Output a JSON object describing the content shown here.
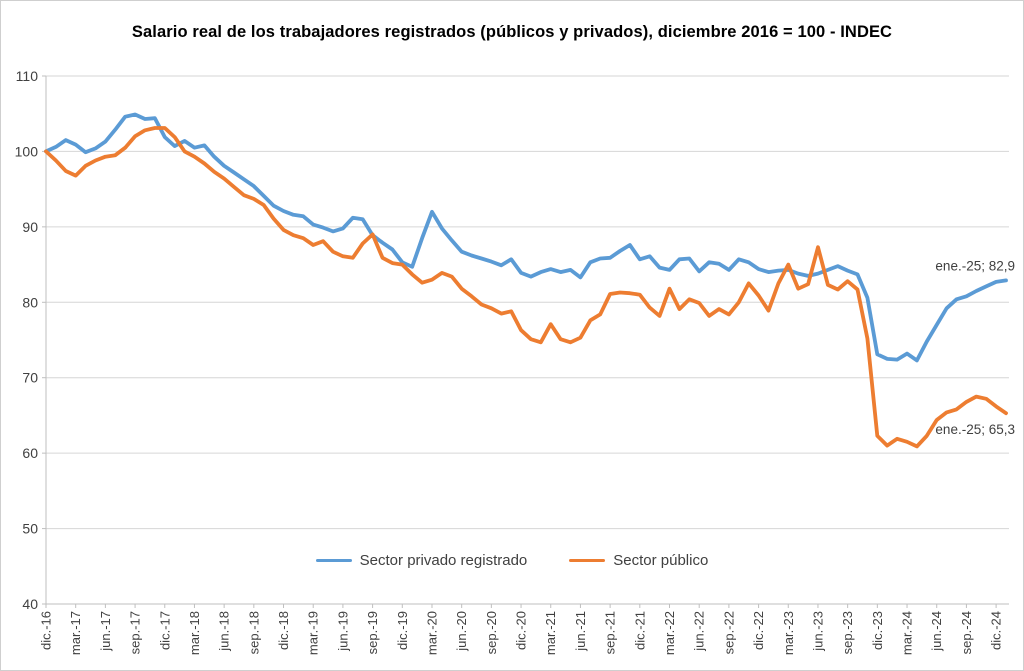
{
  "chart": {
    "title": "Salario real de los trabajadores registrados (públicos y privados), diciembre 2016 = 100 - INDEC"
  },
  "legend": {
    "items": [
      {
        "label": "Sector privado registrado",
        "color": "#5B9BD5"
      },
      {
        "label": "Sector público",
        "color": "#ED7D31"
      }
    ]
  },
  "colors": {
    "private_series": "#5B9BD5",
    "public_series": "#ED7D31",
    "gridline": "#D6D6D6",
    "axis": "#BFBFBF",
    "tick_text": "#404040",
    "annotation_text": "#404040"
  },
  "chart_data": {
    "type": "line",
    "title": "Salario real de los trabajadores registrados (públicos y privados), diciembre 2016 = 100 - INDEC",
    "x_start": "dic.-16",
    "x_end": "ene.-25",
    "x_frequency": "monthly",
    "x_tick_labels": [
      "dic.-16",
      "mar.-17",
      "jun.-17",
      "sep.-17",
      "dic.-17",
      "mar.-18",
      "jun.-18",
      "sep.-18",
      "dic.-18",
      "mar.-19",
      "jun.-19",
      "sep.-19",
      "dic.-19",
      "mar.-20",
      "jun.-20",
      "sep.-20",
      "dic.-20",
      "mar.-21",
      "jun.-21",
      "sep.-21",
      "dic.-21",
      "mar.-22",
      "jun.-22",
      "sep.-22",
      "dic.-22",
      "mar.-23",
      "jun.-23",
      "sep.-23",
      "dic.-23",
      "mar.-24",
      "jun.-24",
      "sep.-24",
      "dic.-24"
    ],
    "x_ticks_every_n_months": 3,
    "ylim": [
      40,
      110
    ],
    "y_ticks": [
      40,
      50,
      60,
      70,
      80,
      90,
      100,
      110
    ],
    "grid": "horizontal-only",
    "legend_position": "bottom-center",
    "series": [
      {
        "name": "Sector privado registrado",
        "color": "#5B9BD5",
        "values": [
          100.0,
          100.6,
          101.5,
          100.9,
          99.9,
          100.4,
          101.3,
          102.9,
          104.6,
          104.9,
          104.3,
          104.4,
          101.9,
          100.7,
          101.4,
          100.5,
          100.8,
          99.3,
          98.1,
          97.2,
          96.3,
          95.4,
          94.1,
          92.8,
          92.1,
          91.6,
          91.4,
          90.3,
          89.9,
          89.4,
          89.8,
          91.2,
          91.0,
          88.9,
          87.9,
          87.0,
          85.3,
          84.7,
          88.5,
          92.0,
          89.8,
          88.2,
          86.7,
          86.2,
          85.8,
          85.4,
          84.9,
          85.7,
          83.9,
          83.4,
          84.0,
          84.4,
          84.0,
          84.3,
          83.3,
          85.3,
          85.8,
          85.9,
          86.8,
          87.6,
          85.7,
          86.1,
          84.6,
          84.3,
          85.7,
          85.8,
          84.1,
          85.3,
          85.1,
          84.3,
          85.7,
          85.3,
          84.4,
          84.0,
          84.2,
          84.3,
          83.8,
          83.5,
          83.8,
          84.3,
          84.8,
          84.2,
          83.7,
          80.6,
          73.1,
          72.5,
          72.4,
          73.2,
          72.3,
          74.8,
          77.0,
          79.2,
          80.4,
          80.8,
          81.5,
          82.1,
          82.7,
          82.9
        ]
      },
      {
        "name": "Sector público",
        "color": "#ED7D31",
        "values": [
          100.0,
          98.8,
          97.4,
          96.8,
          98.1,
          98.8,
          99.3,
          99.5,
          100.5,
          102.0,
          102.8,
          103.1,
          103.1,
          101.9,
          100.0,
          99.3,
          98.4,
          97.3,
          96.4,
          95.3,
          94.2,
          93.7,
          92.9,
          91.1,
          89.6,
          88.9,
          88.5,
          87.6,
          88.1,
          86.7,
          86.1,
          85.9,
          87.8,
          89.0,
          85.9,
          85.2,
          85.0,
          83.7,
          82.6,
          83.0,
          83.9,
          83.4,
          81.8,
          80.8,
          79.7,
          79.2,
          78.5,
          78.8,
          76.3,
          75.1,
          74.7,
          77.1,
          75.1,
          74.7,
          75.3,
          77.6,
          78.4,
          81.1,
          81.3,
          81.2,
          81.0,
          79.3,
          78.2,
          81.8,
          79.1,
          80.4,
          79.9,
          78.2,
          79.1,
          78.4,
          80.0,
          82.5,
          80.9,
          78.9,
          82.5,
          85.0,
          81.8,
          82.4,
          87.3,
          82.3,
          81.7,
          82.8,
          81.7,
          75.2,
          62.3,
          61.0,
          61.9,
          61.5,
          60.9,
          62.3,
          64.4,
          65.4,
          65.8,
          66.8,
          67.5,
          67.2,
          66.2,
          65.3
        ]
      }
    ],
    "annotations": [
      {
        "text": "ene.-25; 82,9",
        "series_index": 0,
        "point_index": 97,
        "value": 82.9
      },
      {
        "text": "ene.-25; 65,3",
        "series_index": 1,
        "point_index": 97,
        "value": 65.3
      }
    ]
  }
}
